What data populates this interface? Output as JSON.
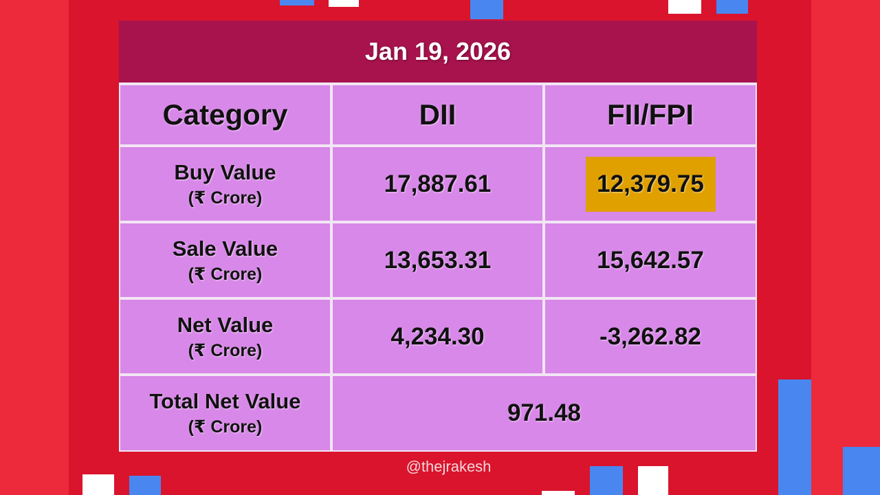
{
  "header": {
    "title": "Jan 19, 2026"
  },
  "table": {
    "columns": [
      "Category",
      "DII",
      "FII/FPI"
    ],
    "rows": [
      {
        "label": "Buy Value",
        "unit": "(₹ Crore)",
        "dii": "17,887.61",
        "fii": "12,379.75"
      },
      {
        "label": "Sale Value",
        "unit": "(₹ Crore)",
        "dii": "13,653.31",
        "fii": "15,642.57"
      },
      {
        "label": "Net Value",
        "unit": "(₹ Crore)",
        "dii": "4,234.30",
        "fii": "-3,262.82"
      }
    ],
    "total": {
      "label": "Total Net Value",
      "unit": "(₹ Crore)",
      "value": "971.48"
    }
  },
  "watermark": "@thejrakesh"
}
